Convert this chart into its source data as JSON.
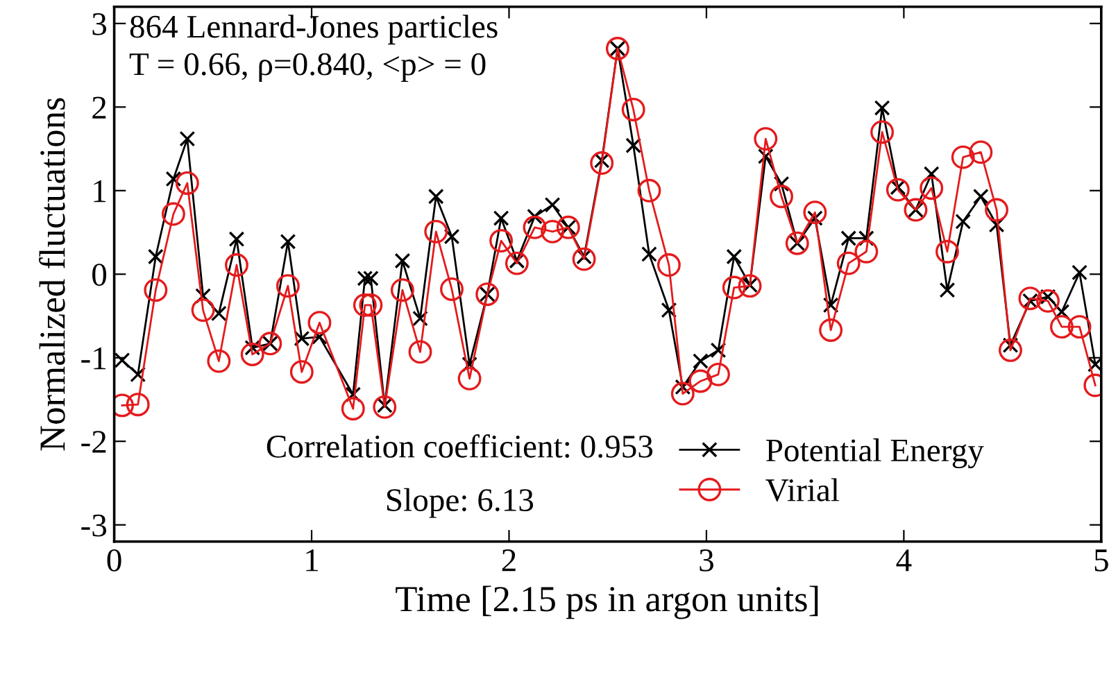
{
  "chart_data": {
    "type": "line",
    "xlabel": "Time [2.15 ps in argon units]",
    "ylabel": "Normalized fluctuations",
    "annotations": [
      "864 Lennard-Jones particles",
      "T = 0.66, ρ=0.840, <p> = 0",
      "Correlation coefficient: 0.953",
      "Slope: 6.13"
    ],
    "x": [
      0.04,
      0.12,
      0.21,
      0.3,
      0.37,
      0.45,
      0.53,
      0.62,
      0.7,
      0.79,
      0.88,
      0.95,
      1.04,
      1.21,
      1.27,
      1.3,
      1.37,
      1.46,
      1.55,
      1.63,
      1.71,
      1.8,
      1.89,
      1.96,
      2.04,
      2.13,
      2.22,
      2.3,
      2.38,
      2.47,
      2.55,
      2.63,
      2.71,
      2.81,
      2.88,
      2.97,
      3.06,
      3.14,
      3.22,
      3.3,
      3.38,
      3.46,
      3.55,
      3.63,
      3.72,
      3.81,
      3.89,
      3.97,
      4.06,
      4.14,
      4.22,
      4.3,
      4.39,
      4.47,
      4.54,
      4.64,
      4.73,
      4.8,
      4.89,
      4.97
    ],
    "series": [
      {
        "name": "Potential Energy",
        "color": "#000000",
        "marker": "cross",
        "values": [
          -1.03,
          -1.2,
          0.21,
          1.14,
          1.62,
          -0.26,
          -0.47,
          0.42,
          -0.88,
          -0.83,
          0.39,
          -0.77,
          -0.75,
          -1.44,
          -0.05,
          -0.05,
          -1.57,
          0.16,
          -0.53,
          0.93,
          0.45,
          -1.08,
          -0.24,
          0.67,
          0.16,
          0.69,
          0.83,
          0.56,
          0.21,
          1.36,
          2.7,
          1.54,
          0.24,
          -0.43,
          -1.35,
          -1.04,
          -0.91,
          0.21,
          -0.13,
          1.41,
          1.08,
          0.37,
          0.67,
          -0.37,
          0.43,
          0.43,
          1.99,
          1.04,
          0.77,
          1.2,
          -0.19,
          0.63,
          0.93,
          0.59,
          -0.85,
          -0.32,
          -0.27,
          -0.45,
          0.02,
          -1.08
        ]
      },
      {
        "name": "Virial",
        "color": "#e41a1c",
        "marker": "circle",
        "values": [
          -1.57,
          -1.56,
          -0.19,
          0.72,
          1.09,
          -0.43,
          -1.04,
          0.11,
          -0.96,
          -0.83,
          -0.14,
          -1.17,
          -0.58,
          -1.61,
          -0.37,
          -0.37,
          -1.59,
          -0.19,
          -0.93,
          0.51,
          -0.18,
          -1.25,
          -0.24,
          0.4,
          0.13,
          0.56,
          0.51,
          0.56,
          0.18,
          1.33,
          2.7,
          1.97,
          1.0,
          0.11,
          -1.43,
          -1.28,
          -1.2,
          -0.16,
          -0.14,
          1.62,
          0.93,
          0.37,
          0.74,
          -0.67,
          0.13,
          0.27,
          1.7,
          1.01,
          0.77,
          1.03,
          0.27,
          1.4,
          1.46,
          0.77,
          -0.91,
          -0.29,
          -0.32,
          -0.63,
          -0.63,
          -1.33
        ]
      }
    ],
    "xlim": [
      0,
      5
    ],
    "xticks": [
      0,
      1,
      2,
      3,
      4,
      5
    ],
    "ylim": [
      -3.2,
      3.2
    ],
    "yticks": [
      -3,
      -2,
      -1,
      0,
      1,
      2,
      3
    ],
    "grid": false,
    "legend": "bottom right",
    "line_style": "solid"
  }
}
